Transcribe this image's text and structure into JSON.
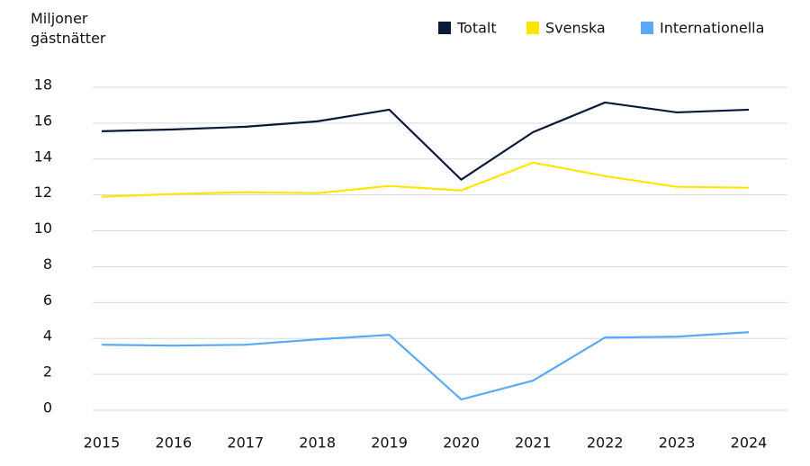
{
  "chart_data": {
    "type": "line",
    "y_label": "Miljoner gästnätter",
    "categories": [
      "2015",
      "2016",
      "2017",
      "2018",
      "2019",
      "2020",
      "2021",
      "2022",
      "2023",
      "2024"
    ],
    "series": [
      {
        "name": "Totalt",
        "color": "#0c1a3a",
        "values": [
          15.55,
          15.65,
          15.8,
          16.1,
          16.75,
          12.85,
          15.5,
          17.15,
          16.6,
          16.75
        ]
      },
      {
        "name": "Svenska",
        "color": "#ffe600",
        "values": [
          11.9,
          12.05,
          12.15,
          12.1,
          12.5,
          12.25,
          13.8,
          13.05,
          12.45,
          12.4
        ]
      },
      {
        "name": "Internationella",
        "color": "#5aa9f5",
        "values": [
          3.65,
          3.6,
          3.65,
          3.95,
          4.2,
          0.6,
          1.65,
          4.05,
          4.1,
          4.35
        ]
      }
    ],
    "ylim": [
      0,
      18
    ],
    "yticks": [
      0,
      2,
      4,
      6,
      8,
      10,
      12,
      14,
      16,
      18
    ],
    "grid": true,
    "legend": "top-right"
  }
}
